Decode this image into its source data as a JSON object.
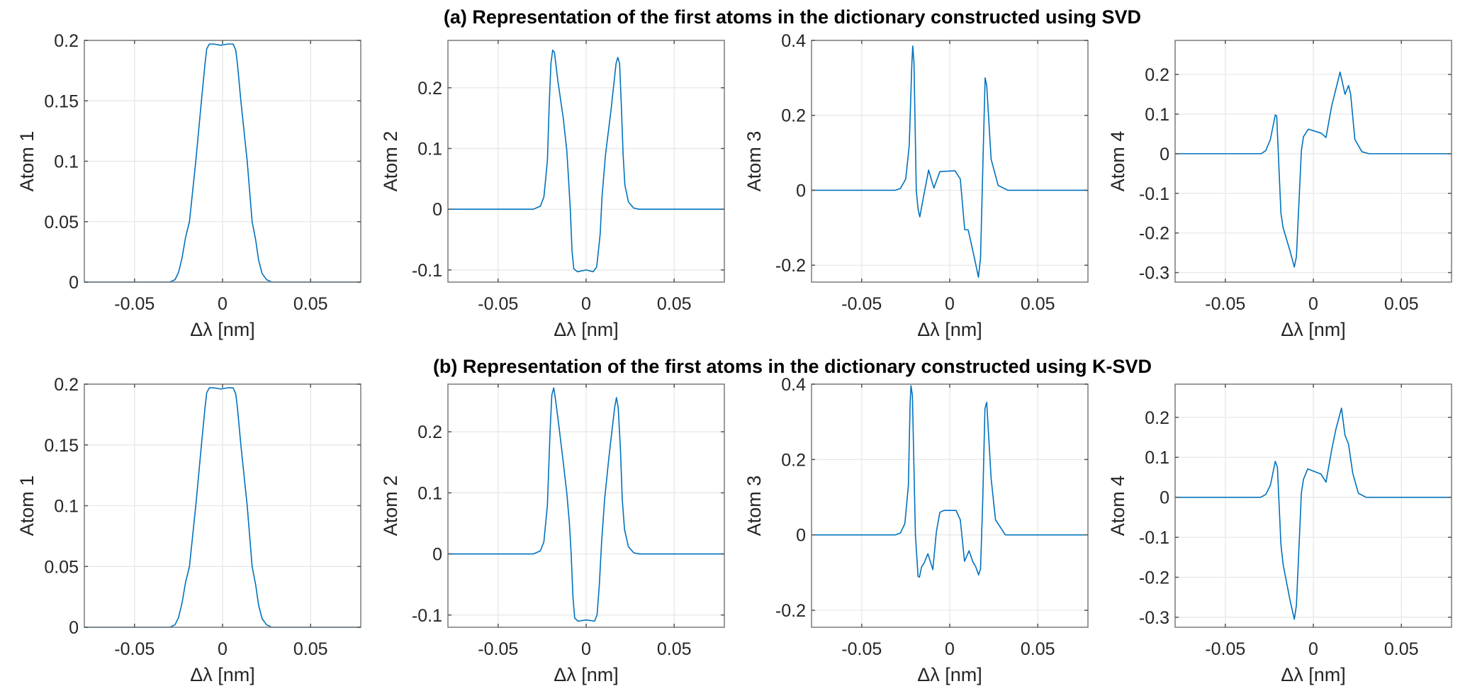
{
  "colors": {
    "line": "#0072BD"
  },
  "titles": {
    "a": "(a) Representation of the first atoms in the dictionary constructed using SVD",
    "b": "(b) Representation of the first atoms in the dictionary constructed using K-SVD"
  },
  "chart_data": [
    {
      "type": "line",
      "row": "a",
      "title": "",
      "xlabel": "Δλ [nm]",
      "ylabel": "Atom 1",
      "xlim": [
        -0.0785,
        0.0785
      ],
      "ylim": [
        0,
        0.2
      ],
      "xticks": [
        -0.05,
        0,
        0.05
      ],
      "xticklabels": [
        "-0.05",
        "0",
        "0.05"
      ],
      "yticks": [
        0,
        0.05,
        0.1,
        0.15,
        0.2
      ],
      "yticklabels": [
        "0",
        "0.05",
        "0.1",
        "0.15",
        "0.2"
      ],
      "grid": true,
      "points": [
        [
          -0.0785,
          0
        ],
        [
          -0.03,
          0
        ],
        [
          -0.027,
          0.002
        ],
        [
          -0.025,
          0.008
        ],
        [
          -0.023,
          0.02
        ],
        [
          -0.021,
          0.037
        ],
        [
          -0.0188,
          0.05
        ],
        [
          -0.0152,
          0.1
        ],
        [
          -0.012,
          0.15
        ],
        [
          -0.01,
          0.18
        ],
        [
          -0.009,
          0.193
        ],
        [
          -0.0075,
          0.197
        ],
        [
          -0.005,
          0.197
        ],
        [
          -0.001,
          0.196
        ],
        [
          0.003,
          0.197
        ],
        [
          0.006,
          0.197
        ],
        [
          0.0075,
          0.192
        ],
        [
          0.0085,
          0.18
        ],
        [
          0.0104,
          0.15
        ],
        [
          0.014,
          0.1
        ],
        [
          0.0168,
          0.05
        ],
        [
          0.0188,
          0.035
        ],
        [
          0.0205,
          0.018
        ],
        [
          0.0225,
          0.007
        ],
        [
          0.025,
          0.002
        ],
        [
          0.028,
          0
        ],
        [
          0.0785,
          0
        ]
      ]
    },
    {
      "type": "line",
      "row": "a",
      "title": "",
      "xlabel": "Δλ [nm]",
      "ylabel": "Atom 2",
      "xlim": [
        -0.0785,
        0.0785
      ],
      "ylim": [
        -0.12,
        0.278
      ],
      "xticks": [
        -0.05,
        0,
        0.05
      ],
      "xticklabels": [
        "-0.05",
        "0",
        "0.05"
      ],
      "yticks": [
        -0.1,
        0,
        0.1,
        0.2
      ],
      "yticklabels": [
        "-0.1",
        "0",
        "0.1",
        "0.2"
      ],
      "grid": true,
      "points": [
        [
          -0.0785,
          0
        ],
        [
          -0.03,
          0
        ],
        [
          -0.026,
          0.005
        ],
        [
          -0.024,
          0.02
        ],
        [
          -0.022,
          0.08
        ],
        [
          -0.021,
          0.17
        ],
        [
          -0.02,
          0.24
        ],
        [
          -0.019,
          0.262
        ],
        [
          -0.018,
          0.258
        ],
        [
          -0.016,
          0.21
        ],
        [
          -0.013,
          0.15
        ],
        [
          -0.011,
          0.097
        ],
        [
          -0.01,
          0.05
        ],
        [
          -0.009,
          0
        ],
        [
          -0.008,
          -0.07
        ],
        [
          -0.007,
          -0.098
        ],
        [
          -0.005,
          -0.103
        ],
        [
          0,
          -0.1
        ],
        [
          0.004,
          -0.103
        ],
        [
          0.006,
          -0.095
        ],
        [
          0.008,
          -0.04
        ],
        [
          0.009,
          0.02
        ],
        [
          0.011,
          0.09
        ],
        [
          0.014,
          0.16
        ],
        [
          0.017,
          0.24
        ],
        [
          0.018,
          0.25
        ],
        [
          0.019,
          0.24
        ],
        [
          0.02,
          0.17
        ],
        [
          0.021,
          0.09
        ],
        [
          0.022,
          0.04
        ],
        [
          0.024,
          0.012
        ],
        [
          0.027,
          0.002
        ],
        [
          0.03,
          0
        ],
        [
          0.0785,
          0
        ]
      ]
    },
    {
      "type": "line",
      "row": "a",
      "title": "",
      "xlabel": "Δλ [nm]",
      "ylabel": "Atom 3",
      "xlim": [
        -0.0785,
        0.0785
      ],
      "ylim": [
        -0.245,
        0.4
      ],
      "xticks": [
        -0.05,
        0,
        0.05
      ],
      "xticklabels": [
        "-0.05",
        "0",
        "0.05"
      ],
      "yticks": [
        -0.2,
        0,
        0.2,
        0.4
      ],
      "yticklabels": [
        "-0.2",
        "0",
        "0.2",
        "0.4"
      ],
      "grid": true,
      "points": [
        [
          -0.0785,
          0
        ],
        [
          -0.031,
          0
        ],
        [
          -0.028,
          0.005
        ],
        [
          -0.025,
          0.03
        ],
        [
          -0.023,
          0.12
        ],
        [
          -0.0215,
          0.34
        ],
        [
          -0.021,
          0.385
        ],
        [
          -0.0203,
          0.34
        ],
        [
          -0.019,
          0
        ],
        [
          -0.018,
          -0.05
        ],
        [
          -0.017,
          -0.071
        ],
        [
          -0.015,
          -0.02
        ],
        [
          -0.012,
          0.054
        ],
        [
          -0.009,
          0.006
        ],
        [
          -0.0056,
          0.05
        ],
        [
          0.003,
          0.052
        ],
        [
          0.006,
          0.03
        ],
        [
          0.0085,
          -0.105
        ],
        [
          0.0105,
          -0.106
        ],
        [
          0.014,
          -0.18
        ],
        [
          0.0163,
          -0.232
        ],
        [
          0.0175,
          -0.18
        ],
        [
          0.019,
          0.1
        ],
        [
          0.0201,
          0.3
        ],
        [
          0.021,
          0.28
        ],
        [
          0.0235,
          0.083
        ],
        [
          0.0275,
          0.013
        ],
        [
          0.033,
          0
        ],
        [
          0.0785,
          0
        ]
      ]
    },
    {
      "type": "line",
      "row": "a",
      "title": "",
      "xlabel": "Δλ [nm]",
      "ylabel": "Atom 4",
      "xlim": [
        -0.0785,
        0.0785
      ],
      "ylim": [
        -0.324,
        0.286
      ],
      "xticks": [
        -0.05,
        0,
        0.05
      ],
      "xticklabels": [
        "-0.05",
        "0",
        "0.05"
      ],
      "yticks": [
        -0.3,
        -0.2,
        -0.1,
        0,
        0.1,
        0.2
      ],
      "yticklabels": [
        "-0.3",
        "-0.2",
        "-0.1",
        "0",
        "0.1",
        "0.2"
      ],
      "grid": true,
      "points": [
        [
          -0.0785,
          0
        ],
        [
          -0.0296,
          0
        ],
        [
          -0.027,
          0.008
        ],
        [
          -0.0244,
          0.036
        ],
        [
          -0.0216,
          0.098
        ],
        [
          -0.0208,
          0.095
        ],
        [
          -0.0184,
          -0.15
        ],
        [
          -0.0172,
          -0.186
        ],
        [
          -0.0132,
          -0.246
        ],
        [
          -0.0108,
          -0.286
        ],
        [
          -0.0096,
          -0.26
        ],
        [
          -0.0068,
          0.007
        ],
        [
          -0.0056,
          0.043
        ],
        [
          -0.0028,
          0.062
        ],
        [
          0.0044,
          0.052
        ],
        [
          0.0072,
          0.041
        ],
        [
          0.0104,
          0.12
        ],
        [
          0.0128,
          0.163
        ],
        [
          0.0152,
          0.206
        ],
        [
          0.018,
          0.15
        ],
        [
          0.02,
          0.172
        ],
        [
          0.0212,
          0.15
        ],
        [
          0.0236,
          0.036
        ],
        [
          0.0276,
          0.005
        ],
        [
          0.0316,
          0
        ],
        [
          0.0785,
          0
        ]
      ]
    },
    {
      "type": "line",
      "row": "b",
      "title": "",
      "xlabel": "Δλ [nm]",
      "ylabel": "Atom 1",
      "xlim": [
        -0.0785,
        0.0785
      ],
      "ylim": [
        0,
        0.2
      ],
      "xticks": [
        -0.05,
        0,
        0.05
      ],
      "xticklabels": [
        "-0.05",
        "0",
        "0.05"
      ],
      "yticks": [
        0,
        0.05,
        0.1,
        0.15,
        0.2
      ],
      "yticklabels": [
        "0",
        "0.05",
        "0.1",
        "0.15",
        "0.2"
      ],
      "grid": true,
      "points": [
        [
          -0.0785,
          0
        ],
        [
          -0.03,
          0
        ],
        [
          -0.027,
          0.002
        ],
        [
          -0.025,
          0.008
        ],
        [
          -0.023,
          0.02
        ],
        [
          -0.021,
          0.037
        ],
        [
          -0.0188,
          0.05
        ],
        [
          -0.0152,
          0.1
        ],
        [
          -0.012,
          0.15
        ],
        [
          -0.01,
          0.18
        ],
        [
          -0.009,
          0.193
        ],
        [
          -0.0075,
          0.197
        ],
        [
          -0.005,
          0.197
        ],
        [
          -0.001,
          0.196
        ],
        [
          0.003,
          0.197
        ],
        [
          0.006,
          0.197
        ],
        [
          0.0075,
          0.192
        ],
        [
          0.0085,
          0.18
        ],
        [
          0.0104,
          0.15
        ],
        [
          0.014,
          0.1
        ],
        [
          0.0168,
          0.05
        ],
        [
          0.0188,
          0.035
        ],
        [
          0.0205,
          0.018
        ],
        [
          0.0225,
          0.007
        ],
        [
          0.025,
          0.002
        ],
        [
          0.028,
          0
        ],
        [
          0.0785,
          0
        ]
      ]
    },
    {
      "type": "line",
      "row": "b",
      "title": "",
      "xlabel": "Δλ [nm]",
      "ylabel": "Atom 2",
      "xlim": [
        -0.0785,
        0.0785
      ],
      "ylim": [
        -0.12,
        0.278
      ],
      "xticks": [
        -0.05,
        0,
        0.05
      ],
      "xticklabels": [
        "-0.05",
        "0",
        "0.05"
      ],
      "yticks": [
        -0.1,
        0,
        0.1,
        0.2
      ],
      "yticklabels": [
        "-0.1",
        "0",
        "0.1",
        "0.2"
      ],
      "grid": true,
      "points": [
        [
          -0.0785,
          0
        ],
        [
          -0.03,
          0
        ],
        [
          -0.026,
          0.005
        ],
        [
          -0.024,
          0.02
        ],
        [
          -0.022,
          0.08
        ],
        [
          -0.0205,
          0.2
        ],
        [
          -0.0195,
          0.26
        ],
        [
          -0.0184,
          0.272
        ],
        [
          -0.0175,
          0.255
        ],
        [
          -0.0155,
          0.21
        ],
        [
          -0.013,
          0.15
        ],
        [
          -0.011,
          0.1
        ],
        [
          -0.0095,
          0.05
        ],
        [
          -0.0085,
          0
        ],
        [
          -0.0075,
          -0.07
        ],
        [
          -0.0065,
          -0.105
        ],
        [
          -0.0046,
          -0.11
        ],
        [
          0,
          -0.108
        ],
        [
          0.0048,
          -0.11
        ],
        [
          0.0062,
          -0.1
        ],
        [
          0.0075,
          -0.05
        ],
        [
          0.0088,
          0.02
        ],
        [
          0.0105,
          0.09
        ],
        [
          0.013,
          0.16
        ],
        [
          0.0162,
          0.24
        ],
        [
          0.0172,
          0.256
        ],
        [
          0.0182,
          0.24
        ],
        [
          0.0195,
          0.17
        ],
        [
          0.0205,
          0.09
        ],
        [
          0.0218,
          0.04
        ],
        [
          0.024,
          0.012
        ],
        [
          0.027,
          0.002
        ],
        [
          0.03,
          0
        ],
        [
          0.0785,
          0
        ]
      ]
    },
    {
      "type": "line",
      "row": "b",
      "title": "",
      "xlabel": "Δλ [nm]",
      "ylabel": "Atom 3",
      "xlim": [
        -0.0785,
        0.0785
      ],
      "ylim": [
        -0.245,
        0.4
      ],
      "xticks": [
        -0.05,
        0,
        0.05
      ],
      "xticklabels": [
        "-0.05",
        "0",
        "0.05"
      ],
      "yticks": [
        -0.2,
        0,
        0.2,
        0.4
      ],
      "yticklabels": [
        "-0.2",
        "0",
        "0.2",
        "0.4"
      ],
      "grid": true,
      "points": [
        [
          -0.0785,
          0
        ],
        [
          -0.031,
          0
        ],
        [
          -0.028,
          0.005
        ],
        [
          -0.0255,
          0.03
        ],
        [
          -0.0235,
          0.13
        ],
        [
          -0.0225,
          0.35
        ],
        [
          -0.022,
          0.396
        ],
        [
          -0.0212,
          0.37
        ],
        [
          -0.0195,
          0
        ],
        [
          -0.018,
          -0.11
        ],
        [
          -0.0172,
          -0.112
        ],
        [
          -0.016,
          -0.085
        ],
        [
          -0.0146,
          -0.075
        ],
        [
          -0.0124,
          -0.05
        ],
        [
          -0.0096,
          -0.092
        ],
        [
          -0.0076,
          0.008
        ],
        [
          -0.0056,
          0.06
        ],
        [
          -0.0032,
          0.065
        ],
        [
          0.0036,
          0.065
        ],
        [
          0.006,
          0.04
        ],
        [
          0.0084,
          -0.07
        ],
        [
          0.011,
          -0.042
        ],
        [
          0.013,
          -0.07
        ],
        [
          0.0148,
          -0.085
        ],
        [
          0.0164,
          -0.106
        ],
        [
          0.0175,
          -0.09
        ],
        [
          0.0188,
          0.1
        ],
        [
          0.02,
          0.335
        ],
        [
          0.021,
          0.352
        ],
        [
          0.0235,
          0.15
        ],
        [
          0.026,
          0.04
        ],
        [
          0.0316,
          0
        ],
        [
          0.0785,
          0
        ]
      ]
    },
    {
      "type": "line",
      "row": "b",
      "title": "",
      "xlabel": "Δλ [nm]",
      "ylabel": "Atom 4",
      "xlim": [
        -0.0785,
        0.0785
      ],
      "ylim": [
        -0.325,
        0.283
      ],
      "xticks": [
        -0.05,
        0,
        0.05
      ],
      "xticklabels": [
        "-0.05",
        "0",
        "0.05"
      ],
      "yticks": [
        -0.3,
        -0.2,
        -0.1,
        0,
        0.1,
        0.2
      ],
      "yticklabels": [
        "-0.3",
        "-0.2",
        "-0.1",
        "0",
        "0.1",
        "0.2"
      ],
      "grid": true,
      "points": [
        [
          -0.0785,
          0
        ],
        [
          -0.03,
          0
        ],
        [
          -0.027,
          0.007
        ],
        [
          -0.0244,
          0.03
        ],
        [
          -0.0216,
          0.09
        ],
        [
          -0.0204,
          0.075
        ],
        [
          -0.0184,
          -0.118
        ],
        [
          -0.0172,
          -0.167
        ],
        [
          -0.0132,
          -0.258
        ],
        [
          -0.0108,
          -0.305
        ],
        [
          -0.0096,
          -0.27
        ],
        [
          -0.0068,
          0.01
        ],
        [
          -0.0056,
          0.045
        ],
        [
          -0.0032,
          0.071
        ],
        [
          0.0044,
          0.058
        ],
        [
          0.0072,
          0.038
        ],
        [
          0.0104,
          0.118
        ],
        [
          0.0128,
          0.17
        ],
        [
          0.016,
          0.223
        ],
        [
          0.018,
          0.155
        ],
        [
          0.02,
          0.133
        ],
        [
          0.0224,
          0.06
        ],
        [
          0.0256,
          0.01
        ],
        [
          0.03,
          0
        ],
        [
          0.0785,
          0
        ]
      ]
    }
  ]
}
